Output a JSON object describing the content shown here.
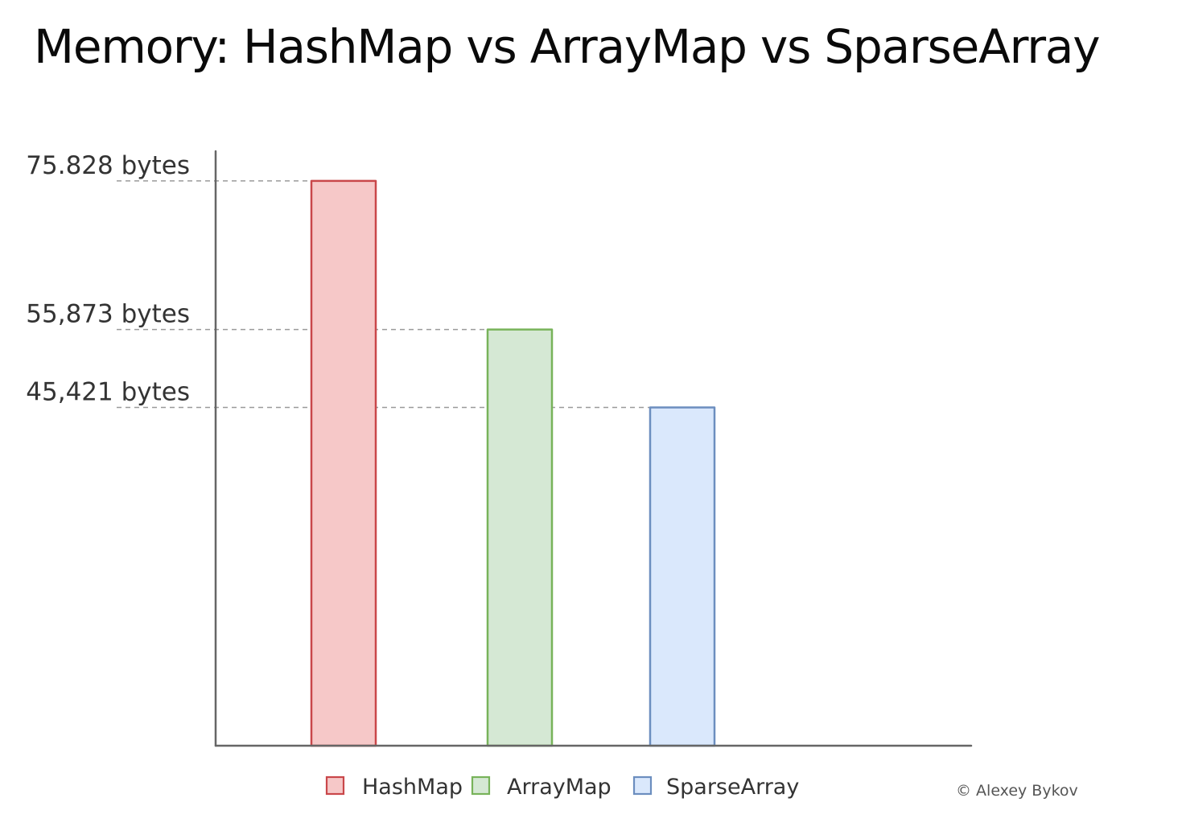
{
  "chart_data": {
    "type": "bar",
    "title": "Memory: HashMap vs ArrayMap vs SparseArray",
    "xlabel": "",
    "ylabel": "",
    "categories": [
      "HashMap",
      "ArrayMap",
      "SparseArray"
    ],
    "values": [
      75828,
      55873,
      45421
    ],
    "value_labels": [
      "75.828 bytes",
      "55,873 bytes",
      "45,421 bytes"
    ],
    "ylim": [
      0,
      85000
    ],
    "grid": "dashed reference lines at each bar value",
    "legend_position": "bottom-center",
    "colors": {
      "HashMap": {
        "fill": "#f6c8c8",
        "stroke": "#c9474a"
      },
      "ArrayMap": {
        "fill": "#d5e8d4",
        "stroke": "#78b35a"
      },
      "SparseArray": {
        "fill": "#dae8fc",
        "stroke": "#6c8ebf"
      }
    },
    "axis_color": "#666666",
    "gridline_color": "#9a9a9a"
  },
  "credit": "© Alexey Bykov"
}
